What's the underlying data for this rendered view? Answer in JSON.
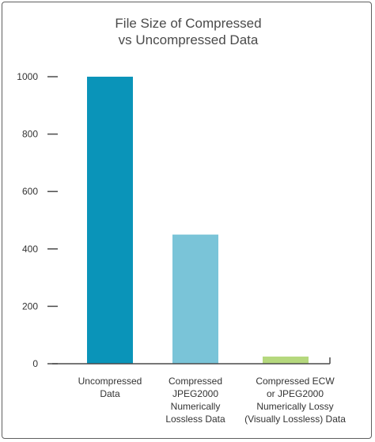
{
  "chart_data": {
    "type": "bar",
    "title": [
      "File Size of Compressed",
      "vs Uncompressed Data"
    ],
    "xlabel": "",
    "ylabel": "",
    "ylim": [
      0,
      1000
    ],
    "yticks": [
      0,
      200,
      400,
      600,
      800,
      1000
    ],
    "grid": false,
    "legend": "none",
    "categories": [
      [
        "Uncompressed",
        "Data"
      ],
      [
        "Compressed",
        "JPEG2000",
        "Numerically",
        "Lossless Data"
      ],
      [
        "Compressed ECW",
        "or JPEG2000",
        "Numerically Lossy",
        "(Visually Lossless) Data"
      ]
    ],
    "values": [
      1000,
      450,
      25
    ],
    "colors": [
      "#0a94b9",
      "#7ac4d8",
      "#b5d87d"
    ],
    "axis_color": "#4a4a4a"
  }
}
